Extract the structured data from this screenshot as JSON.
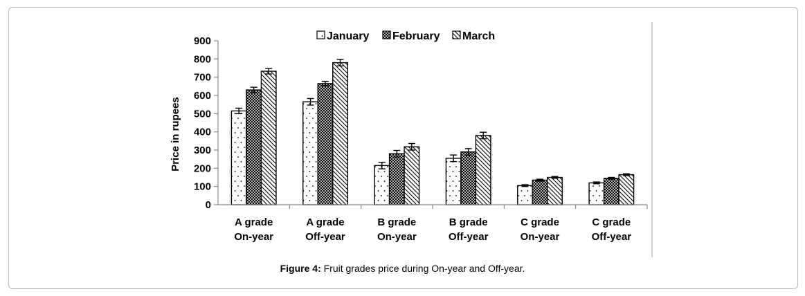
{
  "chart_data": {
    "type": "bar",
    "ylabel": "Price in rupees",
    "ylim": [
      0,
      900
    ],
    "yticks": [
      "0",
      "100",
      "200",
      "300",
      "400",
      "500",
      "600",
      "700",
      "800",
      "900"
    ],
    "categories": [
      [
        "A grade",
        "On-year"
      ],
      [
        "A grade",
        "Off-year"
      ],
      [
        "B grade",
        "On-year"
      ],
      [
        "B grade",
        "Off-year"
      ],
      [
        "C grade",
        "On-year"
      ],
      [
        "C grade",
        "Off-year"
      ]
    ],
    "series": [
      {
        "name": "January",
        "pattern": "dots",
        "values": [
          515,
          565,
          215,
          255,
          105,
          120
        ],
        "errors": [
          15,
          18,
          18,
          18,
          5,
          5
        ]
      },
      {
        "name": "February",
        "pattern": "crosshatch",
        "values": [
          630,
          665,
          280,
          290,
          135,
          145
        ],
        "errors": [
          15,
          12,
          18,
          18,
          5,
          5
        ]
      },
      {
        "name": "March",
        "pattern": "diagonal",
        "values": [
          733,
          780,
          318,
          380,
          150,
          165
        ],
        "errors": [
          15,
          18,
          18,
          18,
          5,
          5
        ]
      }
    ],
    "legend_position": "top",
    "grid": false
  },
  "caption": {
    "label": "Figure 4:",
    "text": " Fruit grades price during On-year and Off-year."
  }
}
